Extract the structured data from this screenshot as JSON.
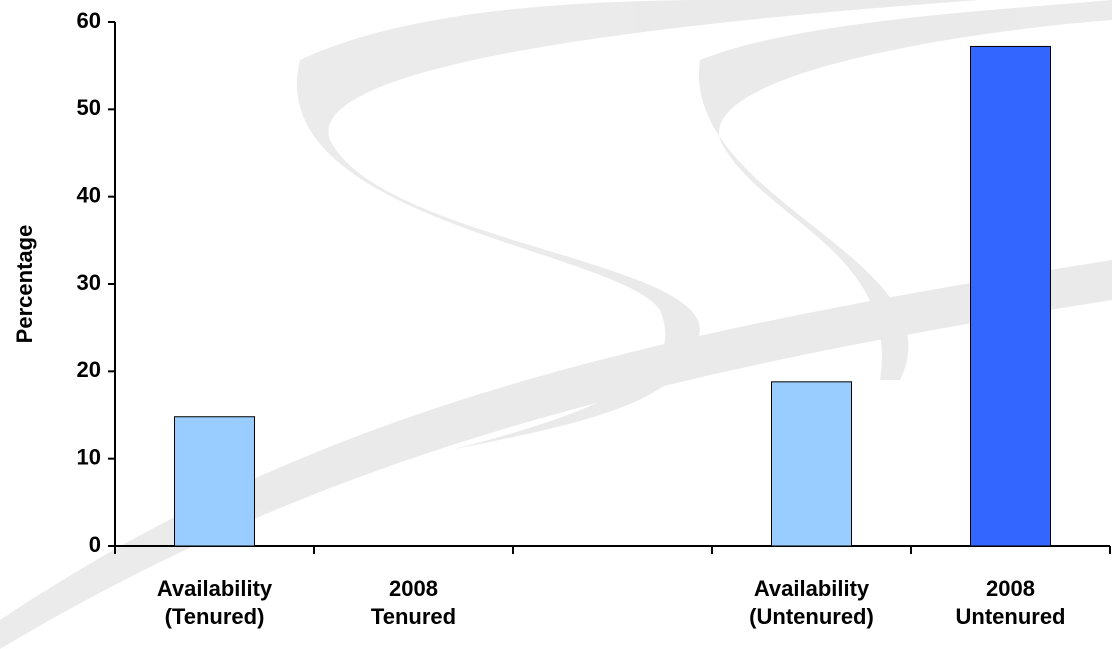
{
  "chart_data": {
    "type": "bar",
    "y_label": "Percentage",
    "categories": [
      "Availability (Tenured)",
      "2008 Tenured",
      null,
      "Availability (Untenured)",
      "2008 Untenured"
    ],
    "values": [
      14.8,
      null,
      null,
      18.8,
      57.2
    ],
    "colors": [
      "#99ccff",
      "#3366ff",
      "#99ccff",
      "#99ccff",
      "#3366ff"
    ],
    "ylim": [
      0,
      60
    ],
    "yticks": [
      0,
      10,
      20,
      30,
      40,
      50,
      60
    ],
    "grid": false
  }
}
